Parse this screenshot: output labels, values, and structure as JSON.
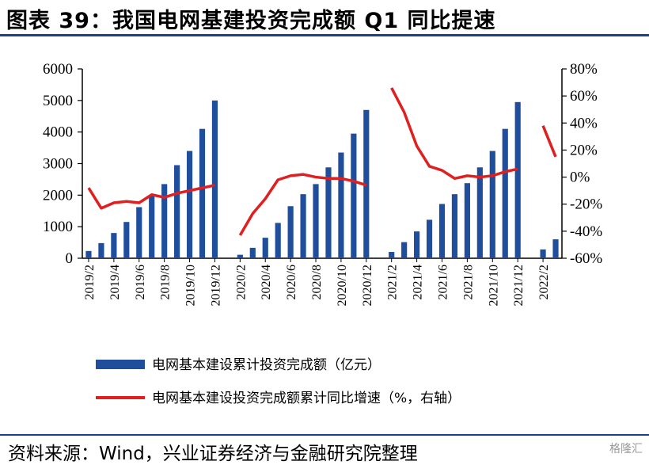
{
  "header": {
    "title": "图表 39：我国电网基建投资完成额 Q1 同比提速"
  },
  "footer": {
    "source": "资料来源：Wind，兴业证券经济与金融研究院整理"
  },
  "watermark": {
    "text": "格隆汇"
  },
  "colors": {
    "bar": "#1f4e9c",
    "line": "#e02020",
    "rule": "#1b3f8b"
  },
  "chart_data": {
    "type": "bar",
    "categories": [
      "2019/2",
      "2019/3",
      "2019/4",
      "2019/5",
      "2019/6",
      "2019/7",
      "2019/8",
      "2019/9",
      "2019/10",
      "2019/11",
      "2019/12",
      "2020/1",
      "2020/2",
      "2020/3",
      "2020/4",
      "2020/5",
      "2020/6",
      "2020/7",
      "2020/8",
      "2020/9",
      "2020/10",
      "2020/11",
      "2020/12",
      "2021/1",
      "2021/2",
      "2021/3",
      "2021/4",
      "2021/5",
      "2021/6",
      "2021/7",
      "2021/8",
      "2021/9",
      "2021/10",
      "2021/11",
      "2021/12",
      "2022/1",
      "2022/2",
      "2022/3"
    ],
    "x_tick_labels": [
      "2019/2",
      "2019/4",
      "2019/6",
      "2019/8",
      "2019/10",
      "2019/12",
      "2020/2",
      "2020/4",
      "2020/6",
      "2020/8",
      "2020/10",
      "2020/12",
      "2021/2",
      "2021/4",
      "2021/6",
      "2021/8",
      "2021/10",
      "2021/12",
      "2022/2"
    ],
    "y_left_ticks": [
      "0",
      "1000",
      "2000",
      "3000",
      "4000",
      "5000",
      "6000"
    ],
    "y_right_ticks": [
      "-60%",
      "-40%",
      "-20%",
      "0%",
      "20%",
      "40%",
      "60%",
      "80%"
    ],
    "ylim_left": [
      0,
      6000
    ],
    "ylim_right": [
      -60,
      80
    ],
    "legend_position": "bottom",
    "series": [
      {
        "name": "电网基本建设累计投资完成额（亿元）",
        "kind": "bar",
        "axis": "left",
        "values": [
          230,
          480,
          800,
          1150,
          1620,
          2000,
          2350,
          2950,
          3400,
          4100,
          5000,
          null,
          110,
          330,
          650,
          1120,
          1650,
          2030,
          2350,
          2880,
          3350,
          3950,
          4700,
          null,
          200,
          510,
          850,
          1220,
          1720,
          2030,
          2380,
          2880,
          3400,
          4100,
          4950,
          null,
          280,
          600
        ]
      },
      {
        "name": "电网基本建设投资完成额累计同比增速（%，右轴）",
        "kind": "line",
        "axis": "right",
        "values": [
          -8,
          -23,
          -19,
          -18,
          -19,
          -13,
          -15,
          -12,
          -10,
          -8,
          -6,
          null,
          -43,
          -27,
          -16,
          -2,
          1,
          2,
          0,
          -1,
          -1,
          -3,
          -6,
          null,
          66,
          48,
          23,
          8,
          5,
          -1,
          1,
          0,
          1,
          4,
          6,
          null,
          38,
          15
        ]
      }
    ]
  }
}
